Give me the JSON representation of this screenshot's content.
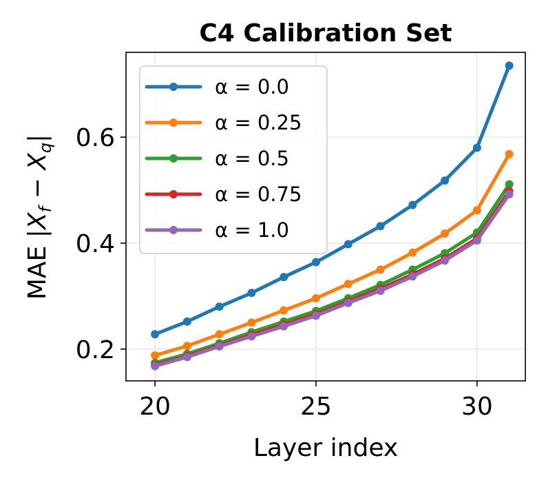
{
  "chart_data": {
    "type": "line",
    "title": "C4 Calibration Set",
    "xlabel": "Layer index",
    "ylabel": "MAE |X_f − X_q|",
    "x": [
      20,
      21,
      22,
      23,
      24,
      25,
      26,
      27,
      28,
      29,
      30,
      31
    ],
    "xlim": [
      19.1,
      31.5
    ],
    "ylim": [
      0.14,
      0.76
    ],
    "xticks": [
      20,
      25,
      30
    ],
    "xtick_labels": [
      "20",
      "25",
      "30"
    ],
    "yticks": [
      0.2,
      0.4,
      0.6
    ],
    "ytick_labels": [
      "0.2",
      "0.4",
      "0.6"
    ],
    "grid": true,
    "legend_position": "upper-left",
    "series": [
      {
        "name": "α = 0.0",
        "color": "#1f77b4",
        "values": [
          0.228,
          0.252,
          0.28,
          0.306,
          0.336,
          0.364,
          0.398,
          0.432,
          0.472,
          0.518,
          0.58,
          0.735
        ]
      },
      {
        "name": "α = 0.25",
        "color": "#ff7f0e",
        "values": [
          0.188,
          0.206,
          0.228,
          0.25,
          0.273,
          0.296,
          0.323,
          0.35,
          0.382,
          0.418,
          0.462,
          0.568
        ]
      },
      {
        "name": "α = 0.5",
        "color": "#2ca02c",
        "values": [
          0.174,
          0.191,
          0.211,
          0.232,
          0.252,
          0.272,
          0.296,
          0.321,
          0.35,
          0.381,
          0.42,
          0.511
        ]
      },
      {
        "name": "α = 0.75",
        "color": "#d62728",
        "values": [
          0.17,
          0.187,
          0.207,
          0.227,
          0.246,
          0.266,
          0.29,
          0.314,
          0.341,
          0.371,
          0.409,
          0.498
        ]
      },
      {
        "name": "α = 1.0",
        "color": "#9467bd",
        "values": [
          0.168,
          0.185,
          0.205,
          0.224,
          0.243,
          0.263,
          0.287,
          0.31,
          0.337,
          0.367,
          0.405,
          0.492
        ]
      }
    ]
  }
}
